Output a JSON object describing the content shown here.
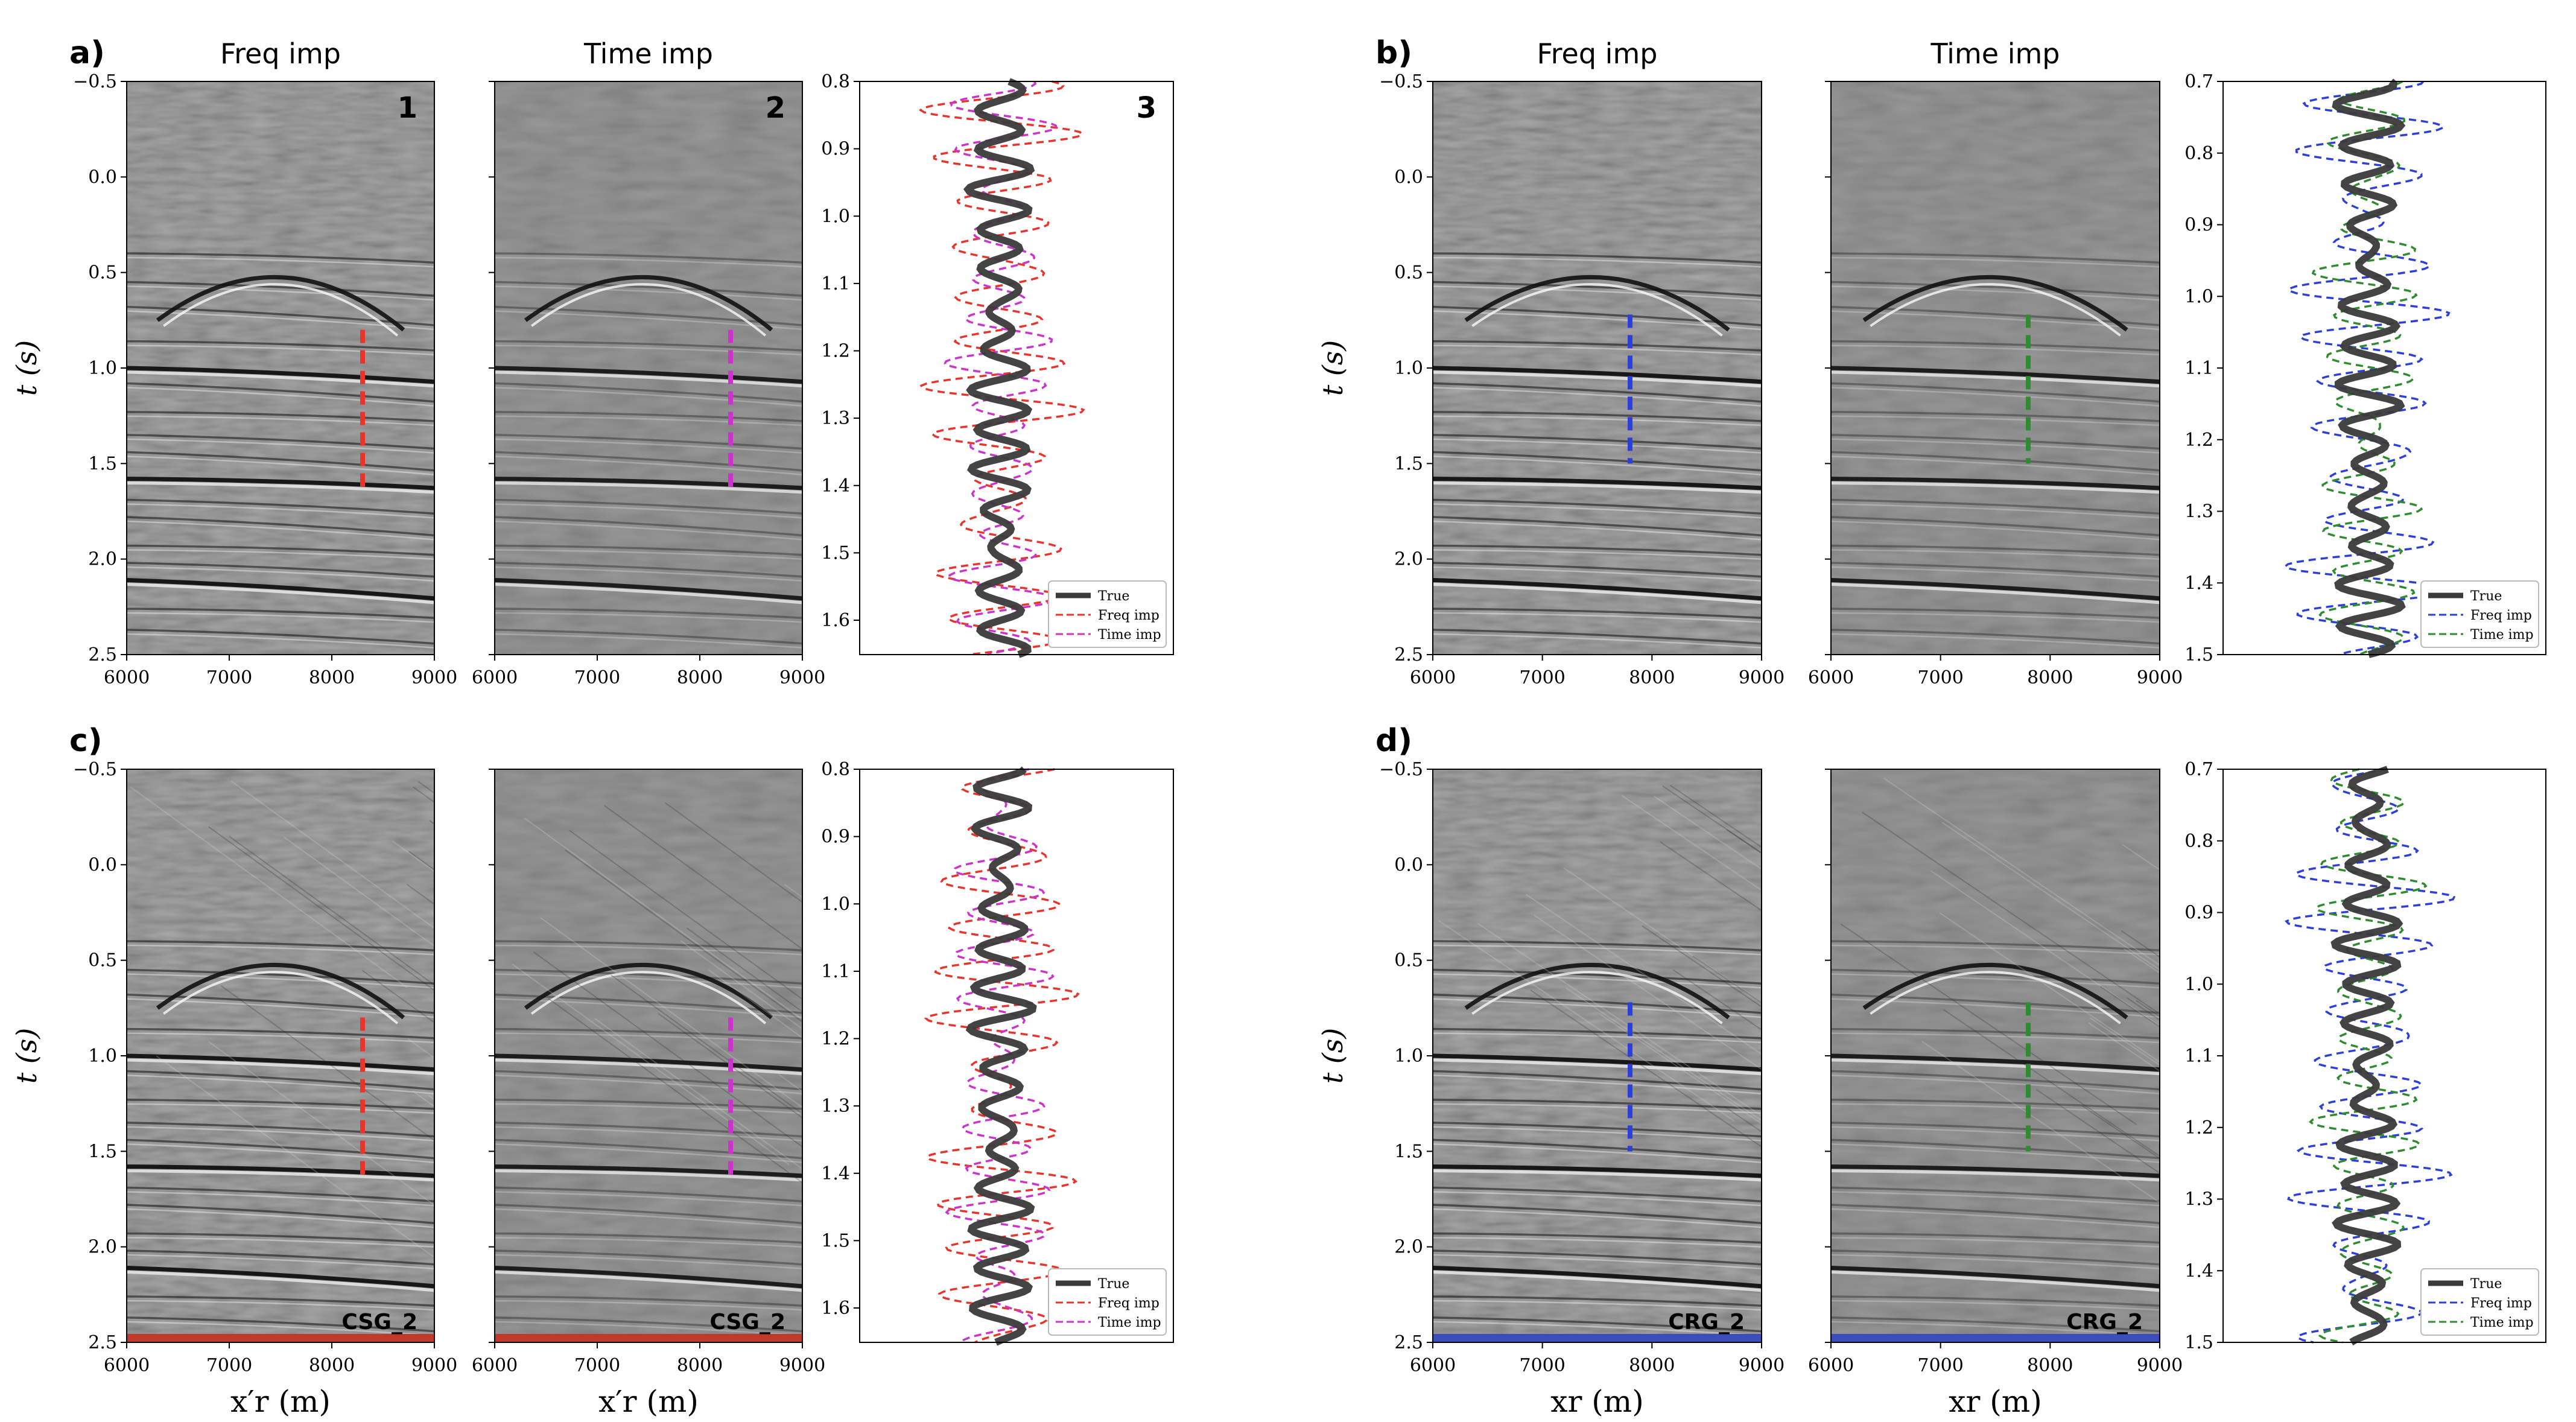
{
  "colors": {
    "red": "#e8342a",
    "magenta": "#cc33cc",
    "blue": "#2b3fd9",
    "green": "#2e8b2e",
    "true_line": "#3a3a3a",
    "seis_bg": "#808080"
  },
  "panels": [
    {
      "id": "a",
      "letter": "a)",
      "titles": [
        "Freq imp",
        "Time imp"
      ],
      "numbers": [
        "1",
        "2",
        "3"
      ],
      "xticks": [
        "6000",
        "7000",
        "8000",
        "9000"
      ],
      "yticks": [
        "−0.5",
        "0.0",
        "0.5",
        "1.0",
        "1.5",
        "2.0",
        "2.5"
      ],
      "ylabel": "t (s)",
      "xlabel": "",
      "corner_label": "",
      "pick_colors": [
        "red",
        "magenta"
      ],
      "pick_x": 8300,
      "trace_ticks": [
        "0.8",
        "0.9",
        "1.0",
        "1.1",
        "1.2",
        "1.3",
        "1.4",
        "1.5",
        "1.6"
      ],
      "legend": [
        "True",
        "Freq imp",
        "Time imp"
      ]
    },
    {
      "id": "b",
      "letter": "b)",
      "titles": [
        "Freq imp",
        "Time imp"
      ],
      "numbers": [],
      "xticks": [
        "6000",
        "7000",
        "8000",
        "9000"
      ],
      "yticks": [
        "−0.5",
        "0.0",
        "0.5",
        "1.0",
        "1.5",
        "2.0",
        "2.5"
      ],
      "ylabel": "t (s)",
      "xlabel": "",
      "corner_label": "",
      "pick_colors": [
        "blue",
        "green"
      ],
      "pick_x": 7800,
      "trace_ticks": [
        "0.7",
        "0.8",
        "0.9",
        "1.0",
        "1.1",
        "1.2",
        "1.3",
        "1.4",
        "1.5"
      ],
      "legend": [
        "True",
        "Freq imp",
        "Time imp"
      ]
    },
    {
      "id": "c",
      "letter": "c)",
      "titles": [],
      "numbers": [],
      "xticks": [
        "6000",
        "7000",
        "8000",
        "9000"
      ],
      "yticks": [
        "−0.5",
        "0.0",
        "0.5",
        "1.0",
        "1.5",
        "2.0",
        "2.5"
      ],
      "ylabel": "t (s)",
      "xlabel": "x′r (m)",
      "corner_label": "CSG_2",
      "pick_colors": [
        "red",
        "magenta"
      ],
      "pick_x": 8300,
      "trace_ticks": [
        "0.8",
        "0.9",
        "1.0",
        "1.1",
        "1.2",
        "1.3",
        "1.4",
        "1.5",
        "1.6"
      ],
      "legend": [
        "True",
        "Freq imp",
        "Time imp"
      ]
    },
    {
      "id": "d",
      "letter": "d)",
      "titles": [],
      "numbers": [],
      "xticks": [
        "6000",
        "7000",
        "8000",
        "9000"
      ],
      "yticks": [
        "−0.5",
        "0.0",
        "0.5",
        "1.0",
        "1.5",
        "2.0",
        "2.5"
      ],
      "ylabel": "t (s)",
      "xlabel": "xr (m)",
      "corner_label": "CRG_2",
      "pick_colors": [
        "blue",
        "green"
      ],
      "pick_x": 7800,
      "trace_ticks": [
        "0.7",
        "0.8",
        "0.9",
        "1.0",
        "1.1",
        "1.2",
        "1.3",
        "1.4",
        "1.5"
      ],
      "legend": [
        "True",
        "Freq imp",
        "Time imp"
      ]
    }
  ],
  "chart_data": [
    {
      "type": "heatmap",
      "title": "Freq imp",
      "panel": "a",
      "xlabel": "",
      "ylabel": "t (s)",
      "xlim": [
        6000,
        9000
      ],
      "ylim": [
        -0.5,
        2.5
      ],
      "pick_x": 8300,
      "pick_t": [
        0.8,
        1.65
      ]
    },
    {
      "type": "line",
      "panel": "a3",
      "series": [
        {
          "name": "True"
        },
        {
          "name": "Freq imp"
        },
        {
          "name": "Time imp"
        }
      ],
      "ylim": [
        0.8,
        1.65
      ]
    },
    {
      "type": "heatmap",
      "title": "Time imp",
      "panel": "b",
      "xlim": [
        6000,
        9000
      ],
      "ylim": [
        -0.5,
        2.5
      ],
      "pick_x": 7800,
      "pick_t": [
        0.7,
        1.5
      ]
    },
    {
      "type": "line",
      "panel": "b3",
      "series": [
        {
          "name": "True"
        },
        {
          "name": "Freq imp"
        },
        {
          "name": "Time imp"
        }
      ],
      "ylim": [
        0.7,
        1.5
      ]
    }
  ]
}
